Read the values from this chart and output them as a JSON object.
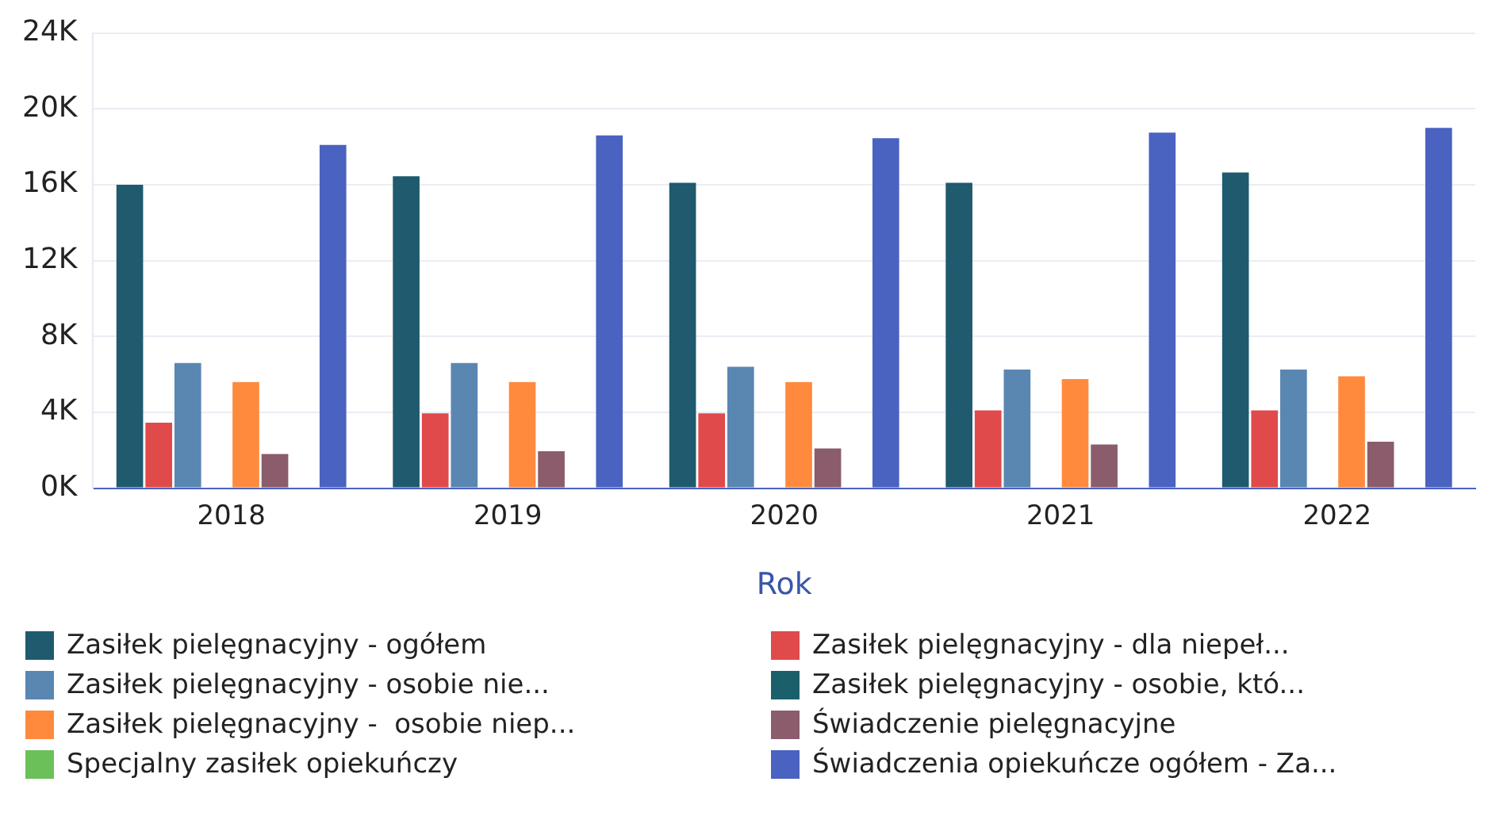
{
  "chart_data": {
    "type": "bar",
    "xlabel": "Rok",
    "categories": [
      "2018",
      "2019",
      "2020",
      "2021",
      "2022"
    ],
    "series": [
      {
        "name": "Zasiłek pielęgnacyjny - ogółem",
        "color": "#1f5a6e",
        "values": [
          16000,
          16450,
          16100,
          16100,
          16650
        ]
      },
      {
        "name": "Zasiłek pielęgnacyjny - dla niepeł...",
        "color": "#e04a4a",
        "values": [
          3450,
          3950,
          3950,
          4100,
          4100
        ]
      },
      {
        "name": "Zasiłek pielęgnacyjny - osobie nie...",
        "color": "#5a86b2",
        "values": [
          6600,
          6600,
          6400,
          6250,
          6250
        ]
      },
      {
        "name": "Zasiłek pielęgnacyjny - osobie, któ...",
        "color": "#1b5f6b",
        "values": [
          null,
          null,
          null,
          null,
          null
        ]
      },
      {
        "name": "Zasiłek pielęgnacyjny -  osobie niep...",
        "color": "#ff8a3d",
        "values": [
          5600,
          5600,
          5600,
          5750,
          5900
        ]
      },
      {
        "name": "Świadczenie pielęgnacyjne",
        "color": "#8a5c6c",
        "values": [
          1800,
          1950,
          2100,
          2300,
          2450
        ]
      },
      {
        "name": "Specjalny zasiłek opiekuńczy",
        "color": "#6cc05a",
        "values": [
          null,
          null,
          null,
          null,
          null
        ]
      },
      {
        "name": "Świadczenia opiekuńcze ogółem - Za...",
        "color": "#4a62c0",
        "values": [
          18100,
          18600,
          18450,
          18750,
          19000
        ]
      }
    ],
    "ylim": [
      0,
      24000
    ],
    "yticks": [
      {
        "value": 0,
        "label": "0K"
      },
      {
        "value": 4000,
        "label": "4K"
      },
      {
        "value": 8000,
        "label": "8K"
      },
      {
        "value": 12000,
        "label": "12K"
      },
      {
        "value": 16000,
        "label": "16K"
      },
      {
        "value": 20000,
        "label": "20K"
      },
      {
        "value": 24000,
        "label": "24K"
      }
    ],
    "grid": "y",
    "legend": "bottom"
  }
}
